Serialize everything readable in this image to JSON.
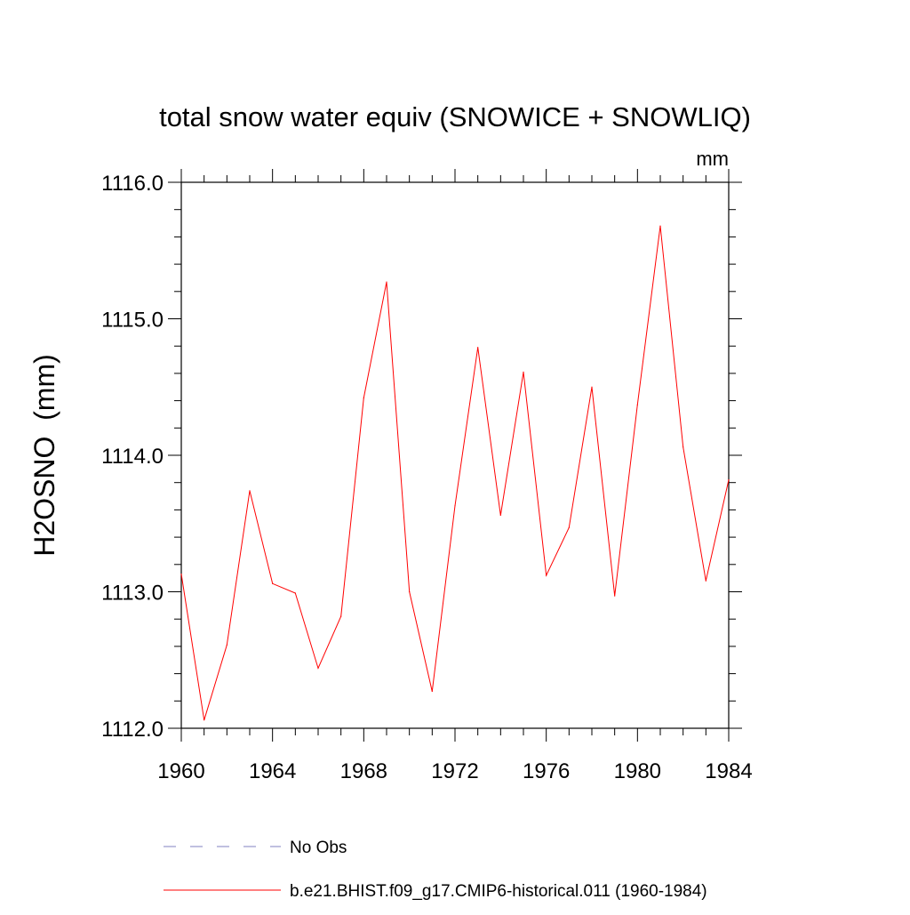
{
  "chart_data": {
    "type": "line",
    "title": "total snow water equiv (SNOWICE + SNOWLIQ)",
    "units_label": "mm",
    "ylabel": "H2OSNO  (mm)",
    "xlabel": "",
    "xlim": [
      1960,
      1984
    ],
    "ylim": [
      1112.0,
      1116.0
    ],
    "x_ticks": [
      1960,
      1964,
      1968,
      1972,
      1976,
      1980,
      1984
    ],
    "x_tick_labels": [
      "1960",
      "1964",
      "1968",
      "1972",
      "1976",
      "1980",
      "1984"
    ],
    "y_ticks": [
      1112.0,
      1113.0,
      1114.0,
      1115.0,
      1116.0
    ],
    "y_tick_labels": [
      "1112.0",
      "1113.0",
      "1114.0",
      "1115.0",
      "1116.0"
    ],
    "grid": false,
    "legend_position": "bottom",
    "series": [
      {
        "name": "b.e21.BHIST.f09_g17.CMIP6-historical.011 (1960-1984)",
        "color": "#ff0000",
        "style": "solid",
        "x": [
          1960,
          1961,
          1962,
          1963,
          1964,
          1965,
          1966,
          1967,
          1968,
          1969,
          1970,
          1971,
          1972,
          1973,
          1974,
          1975,
          1976,
          1977,
          1978,
          1979,
          1980,
          1981,
          1982,
          1983,
          1984
        ],
        "y": [
          1113.13,
          1112.06,
          1112.61,
          1113.74,
          1113.06,
          1112.99,
          1112.44,
          1112.82,
          1114.42,
          1115.27,
          1113.0,
          1112.27,
          1113.63,
          1114.79,
          1113.56,
          1114.61,
          1113.12,
          1113.47,
          1114.5,
          1112.97,
          1114.37,
          1115.68,
          1114.06,
          1113.08,
          1113.82
        ]
      }
    ],
    "legend": [
      {
        "label": "No Obs",
        "color": "#8080c0",
        "style": "dashed"
      },
      {
        "label": "b.e21.BHIST.f09_g17.CMIP6-historical.011 (1960-1984)",
        "color": "#ff0000",
        "style": "solid"
      }
    ]
  }
}
